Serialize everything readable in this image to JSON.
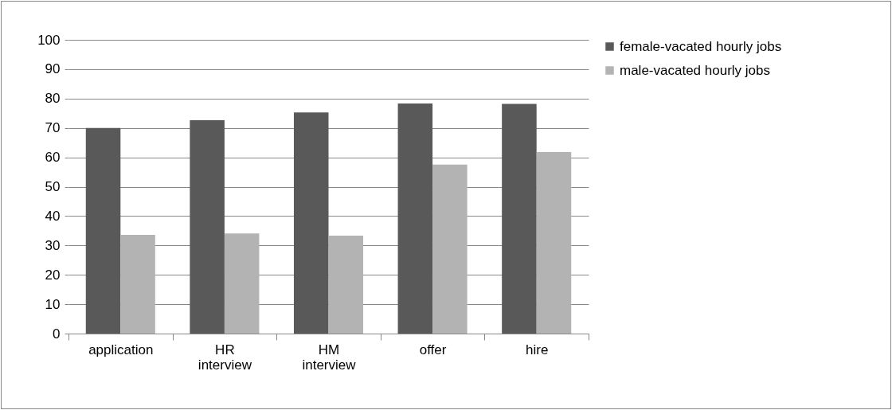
{
  "chart_data": {
    "type": "bar",
    "categories": [
      "application",
      "HR interview",
      "HM interview",
      "offer",
      "hire"
    ],
    "series": [
      {
        "name": "female-vacated hourly jobs",
        "color": "#595959",
        "values": [
          70,
          72.6,
          75.3,
          78.3,
          78.2
        ]
      },
      {
        "name": "male-vacated hourly jobs",
        "color": "#b3b3b3",
        "values": [
          33.6,
          34.1,
          33.3,
          57.5,
          61.8
        ]
      }
    ],
    "ylim": [
      0,
      100
    ],
    "yticks": [
      0,
      10,
      20,
      30,
      40,
      50,
      60,
      70,
      80,
      90,
      100
    ],
    "grid": "y",
    "legend": "right"
  }
}
